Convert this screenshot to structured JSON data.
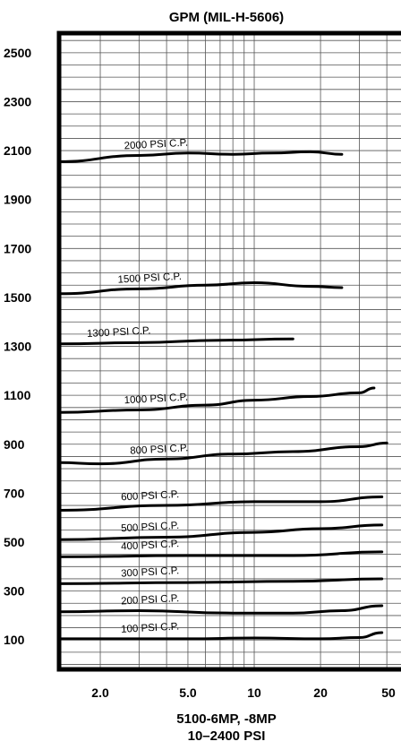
{
  "chart_data": {
    "type": "line",
    "title": "GPM (MIL-H-5606)",
    "xlabel": "5100-6MP, -8MP",
    "subtitle": "10–2400 PSI",
    "ylabel": "",
    "x_scale": "log",
    "xlim": [
      1.3,
      50
    ],
    "ylim": [
      -20,
      2580
    ],
    "x_ticks": [
      2.0,
      5.0,
      10,
      20,
      50
    ],
    "x_tick_labels": [
      "2.0",
      "5.0",
      "10",
      "20",
      "50"
    ],
    "y_ticks": [
      100,
      300,
      500,
      700,
      900,
      1100,
      1300,
      1500,
      1700,
      1900,
      2100,
      2300,
      2500
    ],
    "grid": true,
    "line_color": "#000000",
    "series": [
      {
        "name": "2000 PSI C.P.",
        "x": [
          1.3,
          3,
          5,
          8,
          12,
          18,
          25
        ],
        "y": [
          2055,
          2080,
          2090,
          2085,
          2090,
          2095,
          2085
        ]
      },
      {
        "name": "1500 PSI C.P.",
        "x": [
          1.3,
          3,
          6,
          10,
          18,
          25
        ],
        "y": [
          1515,
          1535,
          1550,
          1560,
          1545,
          1540
        ]
      },
      {
        "name": "1300 PSI C.P.",
        "x": [
          1.3,
          3,
          7,
          15
        ],
        "y": [
          1310,
          1315,
          1325,
          1330
        ]
      },
      {
        "name": "1000 PSI C.P.",
        "x": [
          1.3,
          3,
          6,
          10,
          18,
          30,
          35
        ],
        "y": [
          1030,
          1040,
          1060,
          1080,
          1095,
          1110,
          1130
        ]
      },
      {
        "name": "800 PSI C.P.",
        "x": [
          1.3,
          2,
          4,
          8,
          15,
          30,
          40
        ],
        "y": [
          825,
          820,
          840,
          860,
          870,
          890,
          905
        ]
      },
      {
        "name": "600 PSI C.P.",
        "x": [
          1.3,
          4,
          10,
          20,
          38
        ],
        "y": [
          630,
          650,
          665,
          665,
          685
        ]
      },
      {
        "name": "500 PSI C.P.",
        "x": [
          1.3,
          4,
          10,
          20,
          38
        ],
        "y": [
          510,
          520,
          540,
          555,
          570
        ]
      },
      {
        "name": "400 PSI C.P.",
        "x": [
          1.3,
          5,
          15,
          38
        ],
        "y": [
          440,
          445,
          445,
          460
        ]
      },
      {
        "name": "300 PSI C.P.",
        "x": [
          1.3,
          5,
          15,
          38
        ],
        "y": [
          330,
          335,
          340,
          350
        ]
      },
      {
        "name": "200 PSI C.P.",
        "x": [
          1.3,
          3,
          8,
          15,
          25,
          38
        ],
        "y": [
          215,
          220,
          210,
          210,
          220,
          240
        ]
      },
      {
        "name": "100 PSI C.P.",
        "x": [
          1.3,
          5,
          10,
          20,
          30,
          38
        ],
        "y": [
          105,
          105,
          108,
          105,
          110,
          130
        ]
      }
    ]
  }
}
